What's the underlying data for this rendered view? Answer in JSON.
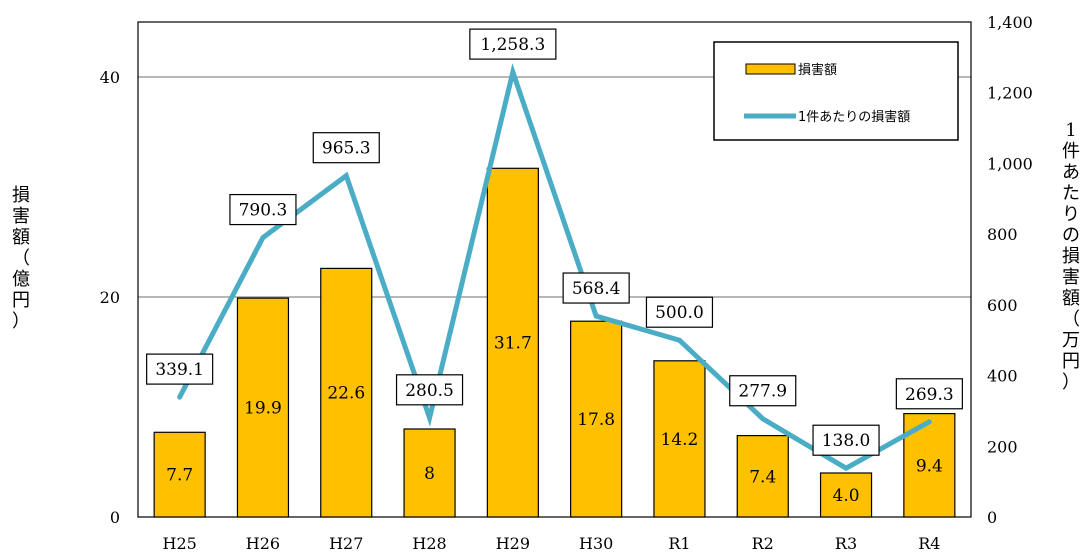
{
  "chart_data": {
    "type": "bar+line",
    "categories": [
      "H25",
      "H26",
      "H27",
      "H28",
      "H29",
      "H30",
      "R1",
      "R2",
      "R3",
      "R4"
    ],
    "series": [
      {
        "name": "損害額",
        "type": "bar",
        "axis": "left",
        "values": [
          7.7,
          19.9,
          22.6,
          8,
          31.7,
          17.8,
          14.2,
          7.4,
          4.0,
          9.4
        ],
        "labels": [
          "7.7",
          "19.9",
          "22.6",
          "8",
          "31.7",
          "17.8",
          "14.2",
          "7.4",
          "4.0",
          "9.4"
        ],
        "color": "#FFC000"
      },
      {
        "name": "1件あたりの損害額",
        "type": "line",
        "axis": "right",
        "values": [
          339.1,
          790.3,
          965.3,
          280.5,
          1258.3,
          568.4,
          500.0,
          277.9,
          138.0,
          269.3
        ],
        "labels": [
          "339.1",
          "790.3",
          "965.3",
          "280.5",
          "1,258.3",
          "568.4",
          "500.0",
          "277.9",
          "138.0",
          "269.3"
        ],
        "color": "#4BACC6"
      }
    ],
    "y_left": {
      "label_chars": [
        "損",
        "害",
        "額",
        "（",
        "億",
        "円",
        "）"
      ],
      "ylim": [
        0,
        45
      ],
      "ticks": [
        0,
        20,
        40
      ],
      "tick_labels": [
        "0",
        "20",
        "40"
      ]
    },
    "y_right": {
      "label_chars": [
        "1",
        "件",
        "あ",
        "た",
        "り",
        "の",
        "損",
        "害",
        "額",
        "（",
        "万",
        "円",
        "）"
      ],
      "ylim": [
        0,
        1400
      ],
      "ticks": [
        0,
        200,
        400,
        600,
        800,
        1000,
        1200,
        1400
      ],
      "tick_labels": [
        "0",
        "200",
        "400",
        "600",
        "800",
        "1,000",
        "1,200",
        "1,400"
      ]
    },
    "grid": "horizontal",
    "legend": {
      "placement": "top-right",
      "items": [
        "損害額",
        "1件あたりの損害額"
      ]
    }
  }
}
